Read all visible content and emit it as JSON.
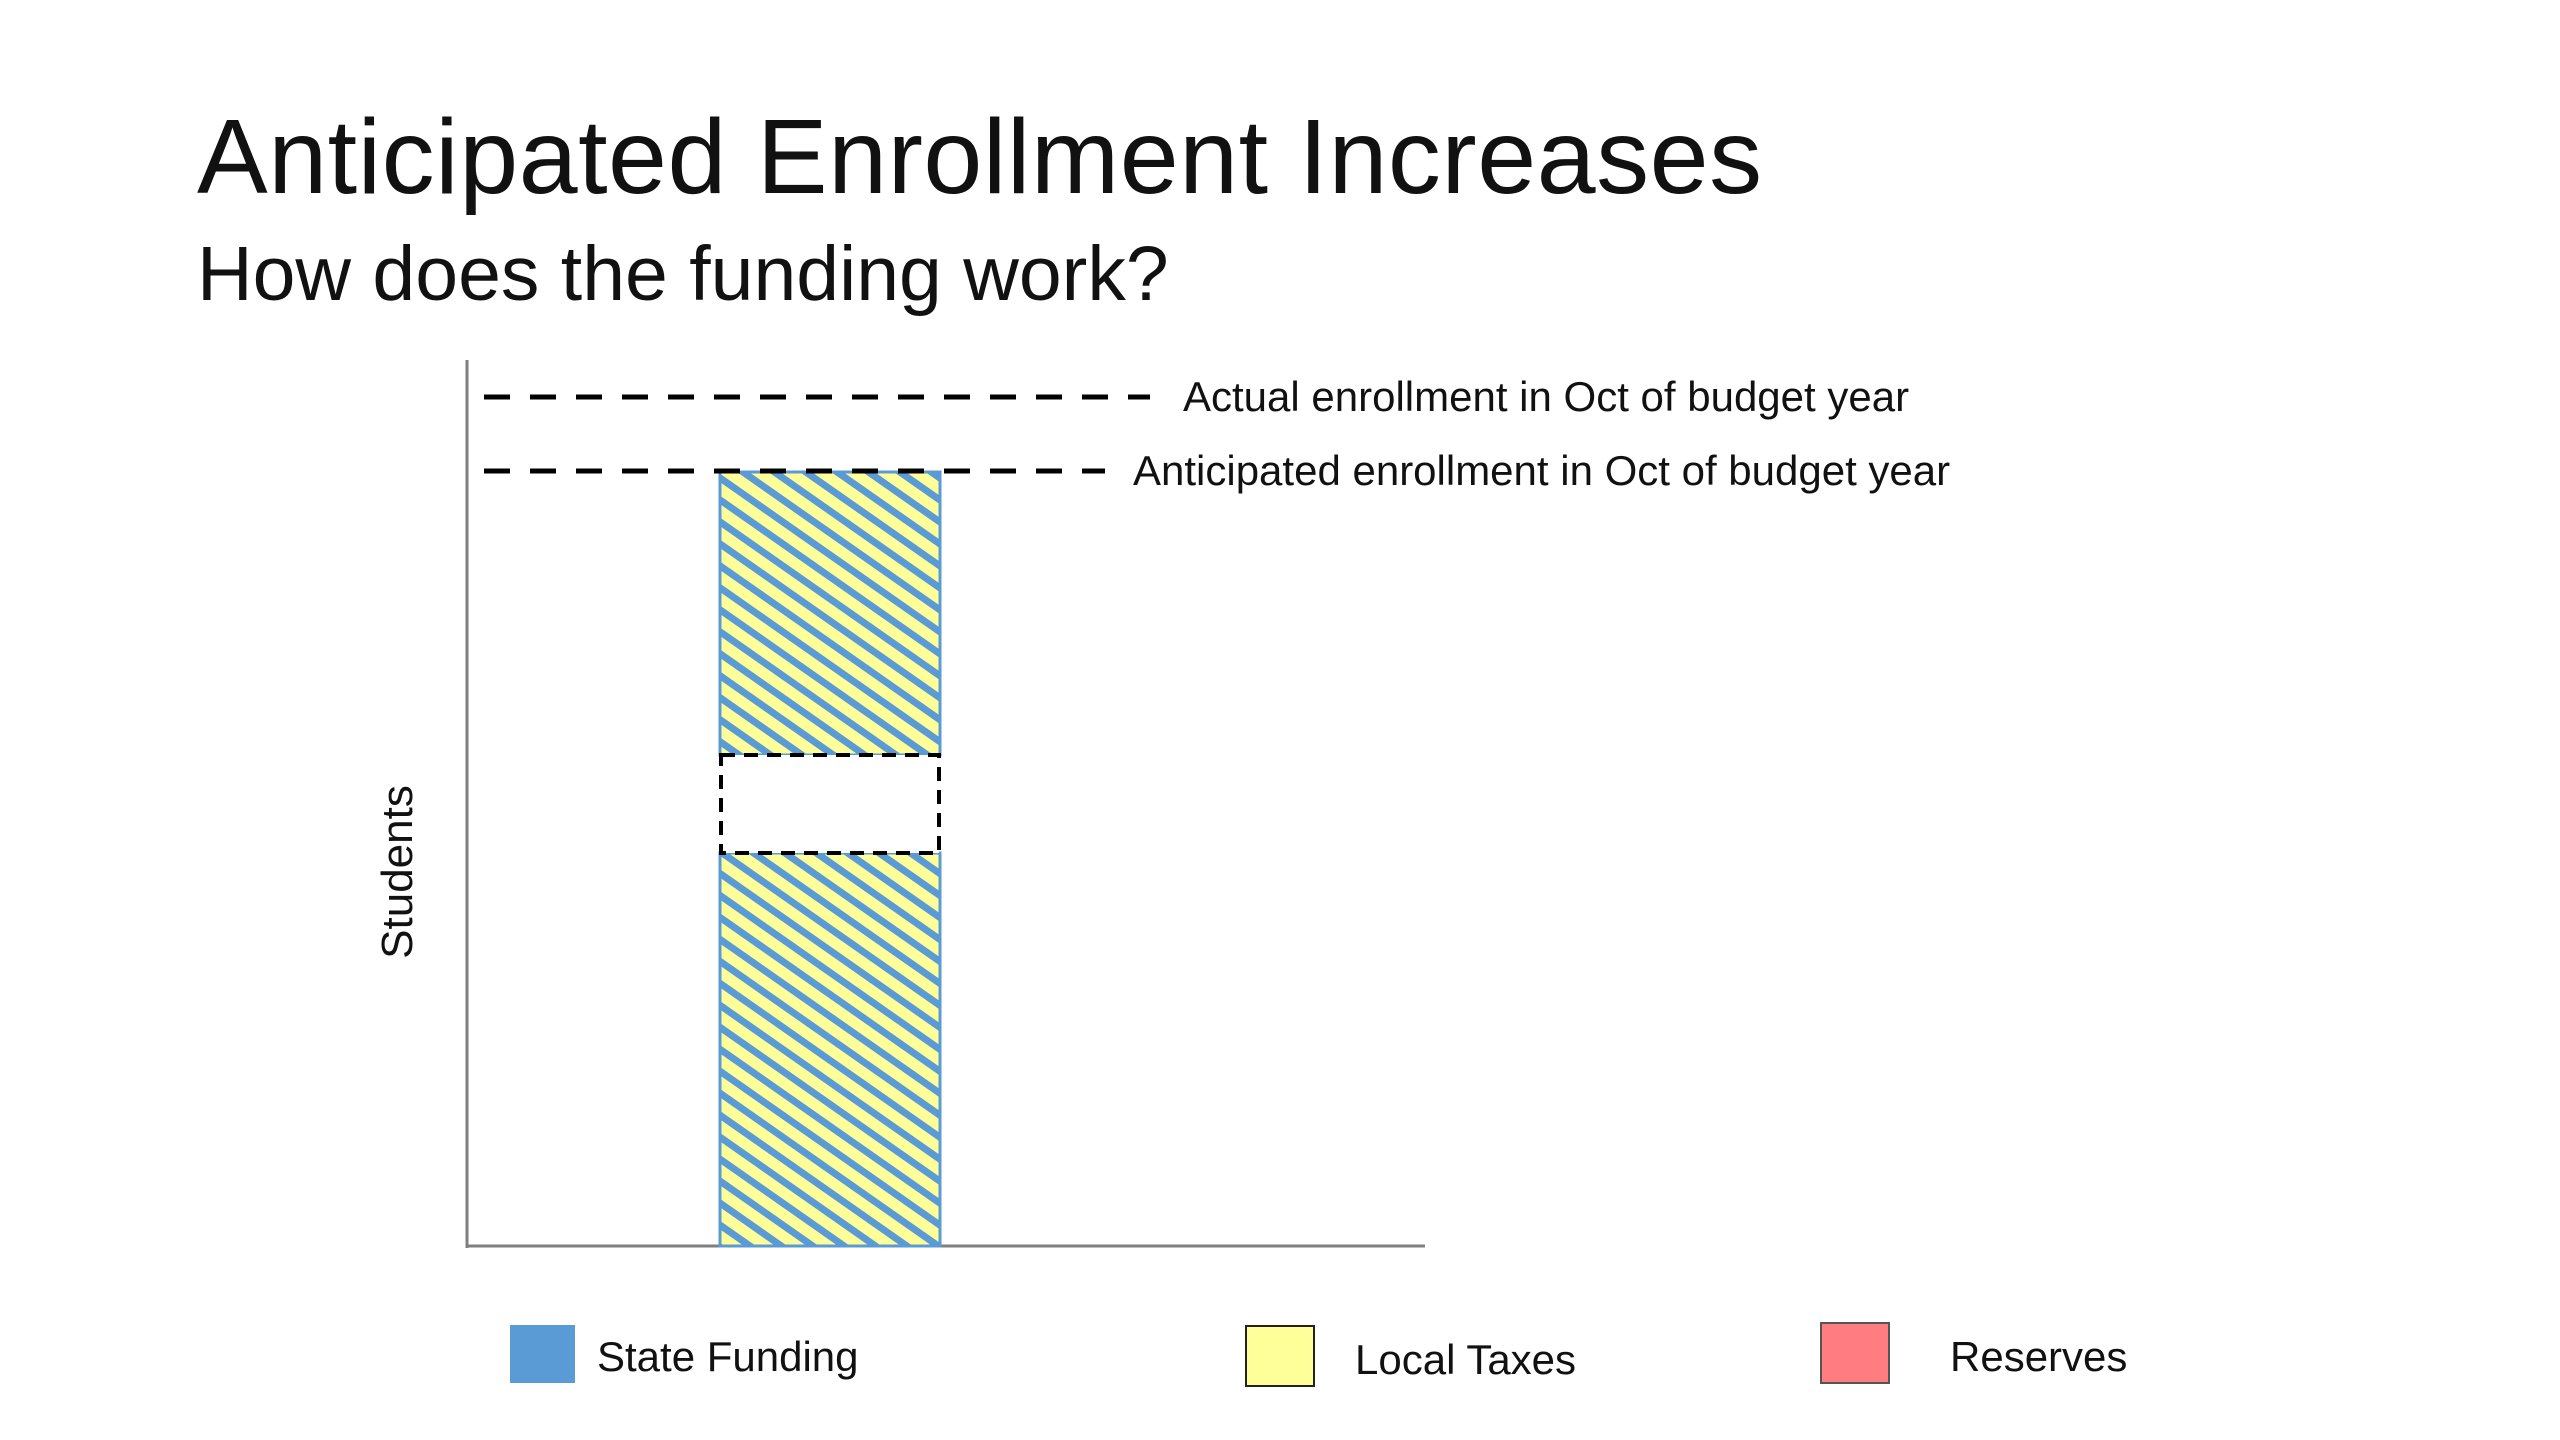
{
  "slide": {
    "title": "Anticipated Enrollment Increases",
    "subtitle": "How does the funding work?"
  },
  "diagram": {
    "y_axis_label": "Students",
    "reference_lines": [
      {
        "label": "Actual enrollment in Oct of budget year"
      },
      {
        "label": "Anticipated enrollment in Oct of budget year"
      }
    ]
  },
  "legend": {
    "items": [
      {
        "label": "State Funding",
        "color": "#5B9BD5"
      },
      {
        "label": "Local Taxes",
        "color": "#FFFF99"
      },
      {
        "label": "Reserves",
        "color": "#FF7C80"
      }
    ]
  },
  "colors": {
    "state_funding": "#5B9BD5",
    "local_taxes": "#FFFF99",
    "reserves": "#FF7C80",
    "axis": "#7F7F7F",
    "dashes": "#000000"
  }
}
